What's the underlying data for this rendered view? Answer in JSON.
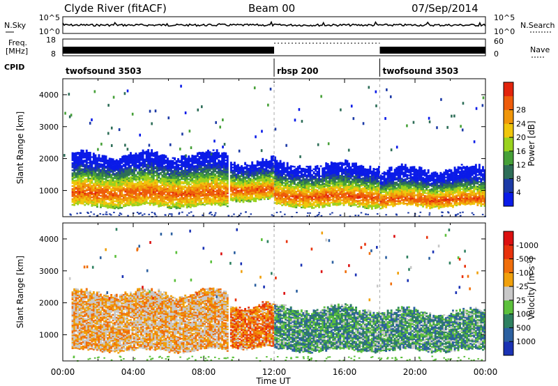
{
  "header": {
    "station": "Clyde River (fitACF)",
    "beam": "Beam 00",
    "date": "07/Sep/2014"
  },
  "strip": {
    "nsky_label": "N.Sky",
    "nsearch_label": "N.Search",
    "nsky_left_top": "10^5",
    "nsky_left_bottom": "10^0",
    "nsky_right_top": "10^5",
    "nsky_right_bottom": "10^0",
    "freq_label_line1": "Freq.",
    "freq_label_line2": "[MHz]",
    "freq_top": "18",
    "freq_bottom": "8",
    "nave_top": "60",
    "nave_bottom": "0",
    "nave_label": "Nave",
    "cpid_label": "CPID"
  },
  "cpid": [
    {
      "name": "twofsound 3503",
      "start_hour": 0,
      "end_hour": 12
    },
    {
      "name": "rbsp 200",
      "start_hour": 12,
      "end_hour": 18
    },
    {
      "name": "twofsound 3503",
      "start_hour": 18,
      "end_hour": 24
    }
  ],
  "chart_data": [
    {
      "type": "heatmap",
      "title": "",
      "xlabel": "",
      "ylabel": "Slant Range [km]",
      "xlim": [
        0,
        24
      ],
      "ylim": [
        180,
        4500
      ],
      "yticks": [
        1000,
        2000,
        3000,
        4000
      ],
      "colorbar": {
        "label": "Power [dB]",
        "ticks": [
          "4",
          "8",
          "12",
          "16",
          "20",
          "24",
          "28"
        ],
        "colors": [
          "#0a1be8",
          "#1c3aa6",
          "#2e6e58",
          "#46a038",
          "#9ad21e",
          "#f0c60c",
          "#f0960a",
          "#ee5c0a",
          "#e2240c"
        ]
      },
      "bands": [
        {
          "start_hour": 0.5,
          "end_hour": 9.3,
          "lower_km": 500,
          "upper_km": 2100,
          "peak_km": 900
        },
        {
          "start_hour": 9.5,
          "end_hour": 12.0,
          "lower_km": 700,
          "upper_km": 1900,
          "peak_km": 1000
        },
        {
          "start_hour": 12.0,
          "end_hour": 18.0,
          "lower_km": 500,
          "upper_km": 1800,
          "peak_km": 800
        },
        {
          "start_hour": 18.0,
          "end_hour": 24.0,
          "lower_km": 500,
          "upper_km": 1650,
          "peak_km": 700
        }
      ]
    },
    {
      "type": "heatmap",
      "title": "",
      "xlabel": "Time UT",
      "ylabel": "Slant Range [km]",
      "xlim": [
        0,
        24
      ],
      "ylim": [
        180,
        4500
      ],
      "yticks": [
        1000,
        2000,
        3000,
        4000
      ],
      "xticks": [
        "00:00",
        "04:00",
        "08:00",
        "12:00",
        "16:00",
        "20:00",
        "00:00"
      ],
      "colorbar": {
        "label": "Velocity [m s^-1]",
        "ticks": [
          "1000",
          "500",
          "100",
          "25",
          "-25",
          "-100",
          "-500",
          "-1000"
        ],
        "colors": [
          "#1a32b4",
          "#2c60a0",
          "#2e8060",
          "#5cc03c",
          "#c8c8c8",
          "#f0a00c",
          "#f06e0a",
          "#e8320c",
          "#dc1010"
        ]
      },
      "bands": [
        {
          "start_hour": 0.5,
          "end_hour": 9.3,
          "lower_km": 500,
          "upper_km": 2300,
          "dominant": "-100"
        },
        {
          "start_hour": 9.5,
          "end_hour": 12.0,
          "lower_km": 600,
          "upper_km": 1900,
          "dominant": "-500"
        },
        {
          "start_hour": 12.0,
          "end_hour": 18.0,
          "lower_km": 500,
          "upper_km": 1800,
          "dominant": "100"
        },
        {
          "start_hour": 18.0,
          "end_hour": 24.0,
          "lower_km": 500,
          "upper_km": 1700,
          "dominant": "100"
        }
      ]
    }
  ]
}
